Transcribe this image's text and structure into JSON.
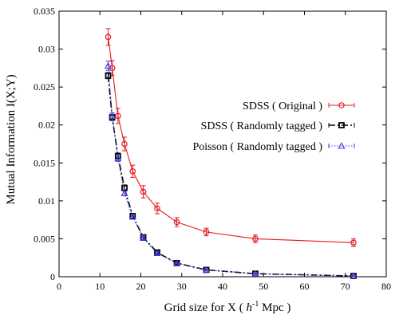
{
  "chart_data": {
    "type": "line",
    "xlabel_main": "Grid size for X ( ",
    "xlabel_unit_base": "h",
    "xlabel_unit_exp": "-1",
    "xlabel_tail": " Mpc )",
    "ylabel": "Mutual Information I(X;Y)",
    "xlim": [
      0,
      80
    ],
    "ylim": [
      0,
      0.035
    ],
    "xticks": [
      "0",
      "10",
      "20",
      "30",
      "40",
      "50",
      "60",
      "70",
      "80"
    ],
    "yticks": [
      "0",
      "0.005",
      "0.01",
      "0.015",
      "0.02",
      "0.025",
      "0.03",
      "0.035"
    ],
    "grid": false,
    "legend_position": "right",
    "series": [
      {
        "name": "SDSS ( Original )",
        "color": "#e8191c",
        "marker": "circle",
        "line": "solid",
        "x": [
          12.0,
          13.0,
          14.4,
          16.0,
          18.0,
          20.6,
          24.0,
          28.8,
          36.0,
          48.0,
          72.0
        ],
        "y": [
          0.0316,
          0.0275,
          0.0212,
          0.0175,
          0.0139,
          0.0112,
          0.009,
          0.0072,
          0.0059,
          0.005,
          0.0045
        ],
        "err": [
          0.0011,
          0.001,
          0.001,
          0.0009,
          0.0008,
          0.0008,
          0.0007,
          0.0006,
          0.0005,
          0.0005,
          0.0005
        ]
      },
      {
        "name": "SDSS ( Randomly tagged )",
        "color": "#000000",
        "marker": "square",
        "line": "dashed",
        "x": [
          12.0,
          13.0,
          14.4,
          16.0,
          18.0,
          20.6,
          24.0,
          28.8,
          36.0,
          48.0,
          72.0
        ],
        "y": [
          0.0265,
          0.021,
          0.0159,
          0.0117,
          0.008,
          0.0052,
          0.0032,
          0.0018,
          0.0009,
          0.0004,
          0.0001
        ],
        "err": [
          0.0004,
          0.0004,
          0.0004,
          0.0004,
          0.0003,
          0.0003,
          0.0002,
          0.0002,
          0.0001,
          0.0001,
          0.0001
        ]
      },
      {
        "name": "Poisson ( Randomly tagged )",
        "color": "#3b3bd9",
        "marker": "triangle",
        "line": "dotted",
        "x": [
          12.0,
          13.0,
          14.4,
          16.0,
          18.0,
          20.6,
          24.0,
          28.8,
          36.0,
          48.0,
          72.0
        ],
        "y": [
          0.0278,
          0.0212,
          0.0156,
          0.011,
          0.0079,
          0.0051,
          0.0031,
          0.0018,
          0.0009,
          0.0004,
          0.0001
        ],
        "err": [
          0.0006,
          0.0004,
          0.0004,
          0.0003,
          0.0003,
          0.0002,
          0.0002,
          0.0001,
          0.0001,
          0.0001,
          0.0001
        ]
      }
    ]
  }
}
